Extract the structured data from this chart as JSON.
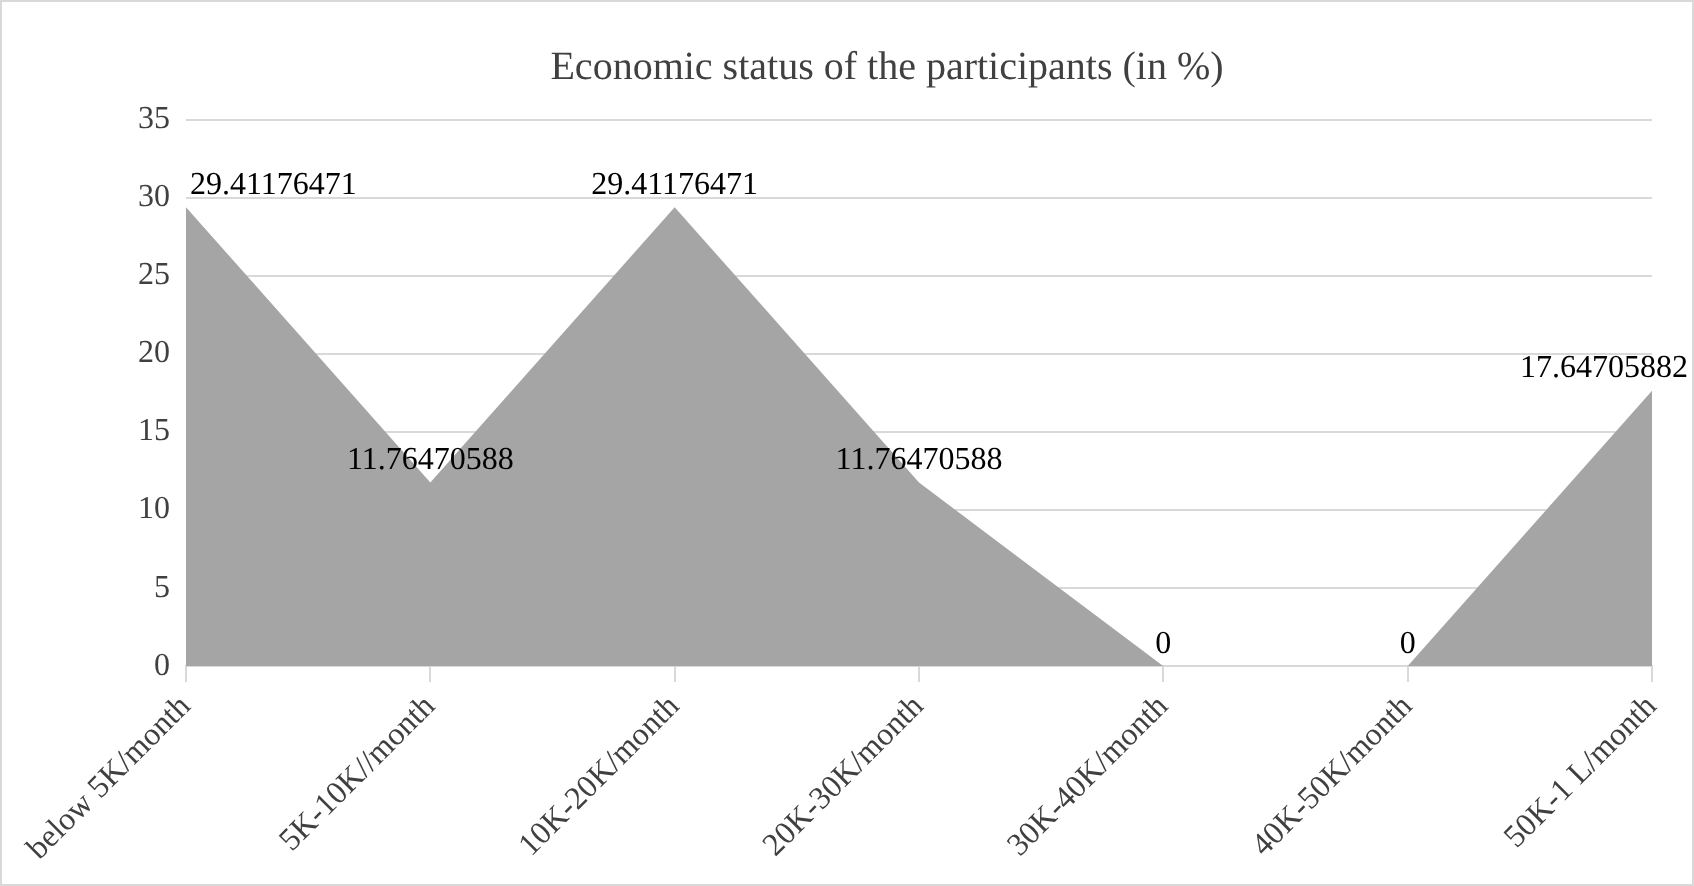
{
  "chart_data": {
    "type": "area",
    "title": "Economic status of the participants (in %)",
    "categories": [
      "below 5K/month",
      "5K-10K//month",
      "10K-20K/month",
      "20K-30K/month",
      "30K-40K/month",
      "40K-50K/month",
      "50K-1 L/month"
    ],
    "values": [
      29.41176471,
      11.76470588,
      29.41176471,
      11.76470588,
      0,
      0,
      17.64705882
    ],
    "color": "#a5a5a5",
    "ylim": [
      0,
      35
    ],
    "yticks": [
      0,
      5,
      10,
      15,
      20,
      25,
      30,
      35
    ],
    "grid": "y",
    "data_labels": true,
    "legend": false
  }
}
